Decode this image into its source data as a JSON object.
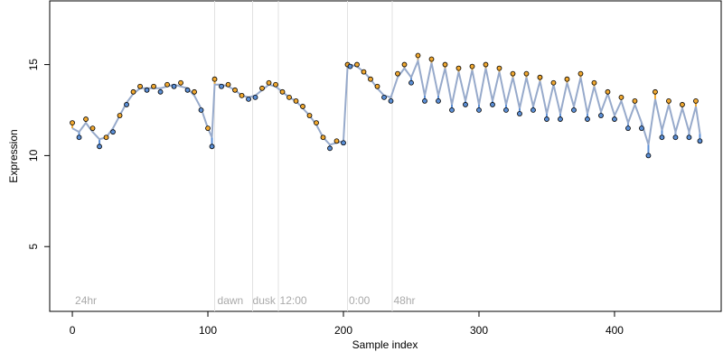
{
  "chart_data": {
    "type": "scatter",
    "xlabel": "Sample index",
    "ylabel": "Expression",
    "xlim": [
      -16.7,
      478.7
    ],
    "ylim": [
      1.44,
      18.5
    ],
    "xticks": [
      0,
      100,
      200,
      300,
      400
    ],
    "yticks": [
      5,
      10,
      15
    ],
    "x": [
      0,
      5,
      10,
      15,
      20,
      25,
      30,
      35,
      40,
      45,
      50,
      55,
      60,
      65,
      70,
      75,
      80,
      85,
      90,
      95,
      100,
      103,
      105,
      110,
      115,
      120,
      125,
      130,
      135,
      140,
      145,
      150,
      155,
      160,
      165,
      170,
      175,
      180,
      185,
      190,
      195,
      200,
      203,
      205,
      210,
      215,
      220,
      225,
      230,
      235,
      240,
      245,
      250,
      255,
      260,
      265,
      270,
      275,
      280,
      285,
      290,
      295,
      300,
      305,
      310,
      315,
      320,
      325,
      330,
      335,
      340,
      345,
      350,
      355,
      360,
      365,
      370,
      375,
      380,
      385,
      390,
      395,
      400,
      405,
      410,
      415,
      420,
      425,
      430,
      435,
      440,
      445,
      450,
      455,
      460,
      463
    ],
    "values": [
      11.8,
      11.0,
      12.0,
      11.5,
      10.5,
      11.0,
      11.3,
      12.2,
      12.8,
      13.5,
      13.8,
      13.6,
      13.8,
      13.5,
      13.9,
      13.8,
      14.0,
      13.6,
      13.5,
      12.5,
      11.5,
      10.5,
      14.2,
      13.8,
      13.9,
      13.6,
      13.3,
      13.1,
      13.2,
      13.7,
      14.0,
      13.9,
      13.5,
      13.2,
      13.0,
      12.7,
      12.2,
      11.8,
      11.0,
      10.4,
      10.8,
      10.7,
      15.0,
      14.9,
      15.0,
      14.6,
      14.2,
      13.8,
      13.2,
      13.0,
      14.5,
      15.0,
      14.0,
      15.5,
      13.0,
      15.3,
      13.0,
      15.0,
      12.5,
      14.8,
      12.8,
      14.9,
      12.5,
      15.0,
      12.8,
      14.8,
      12.5,
      14.5,
      12.3,
      14.5,
      12.5,
      14.3,
      12.0,
      14.0,
      12.0,
      14.2,
      12.5,
      14.5,
      12.0,
      14.0,
      12.2,
      13.5,
      12.0,
      13.2,
      11.5,
      13.0,
      11.5,
      10.0,
      13.5,
      11.0,
      13.0,
      11.0,
      12.8,
      11.0,
      13.0,
      10.8
    ],
    "fit": [
      11.5,
      11.3,
      11.8,
      11.3,
      10.9,
      11.0,
      11.5,
      12.2,
      12.9,
      13.4,
      13.7,
      13.7,
      13.7,
      13.7,
      13.8,
      13.9,
      13.8,
      13.7,
      13.3,
      12.6,
      11.5,
      11.0,
      13.9,
      13.9,
      13.8,
      13.6,
      13.3,
      13.2,
      13.3,
      13.6,
      13.9,
      13.8,
      13.5,
      13.2,
      13.0,
      12.6,
      12.2,
      11.7,
      11.0,
      10.6,
      10.7,
      10.8,
      14.8,
      15.0,
      14.9,
      14.6,
      14.2,
      13.7,
      13.3,
      13.2,
      14.3,
      14.8,
      14.3,
      15.2,
      13.3,
      15.1,
      13.3,
      14.8,
      12.8,
      14.6,
      13.0,
      14.7,
      12.8,
      14.8,
      13.0,
      14.6,
      12.8,
      14.3,
      12.6,
      14.3,
      12.7,
      14.1,
      12.3,
      13.9,
      12.3,
      14.0,
      12.7,
      14.3,
      12.3,
      13.8,
      12.4,
      13.4,
      12.2,
      13.0,
      11.8,
      12.8,
      11.8,
      10.6,
      13.1,
      11.4,
      12.8,
      11.3,
      12.6,
      11.3,
      12.7,
      11.2
    ],
    "fit_color": "#97aacb",
    "above_color": "#f0a830",
    "below_color": "#5b8fd6",
    "vlines": [
      105,
      133,
      152,
      203,
      236
    ],
    "annotations": [
      {
        "x": 2,
        "label": "24hr"
      },
      {
        "x": 107,
        "label": "dawn"
      },
      {
        "x": 133,
        "label": "dusk"
      },
      {
        "x": 153,
        "label": "12:00"
      },
      {
        "x": 204,
        "label": "0:00"
      },
      {
        "x": 237,
        "label": "48hr"
      }
    ]
  }
}
